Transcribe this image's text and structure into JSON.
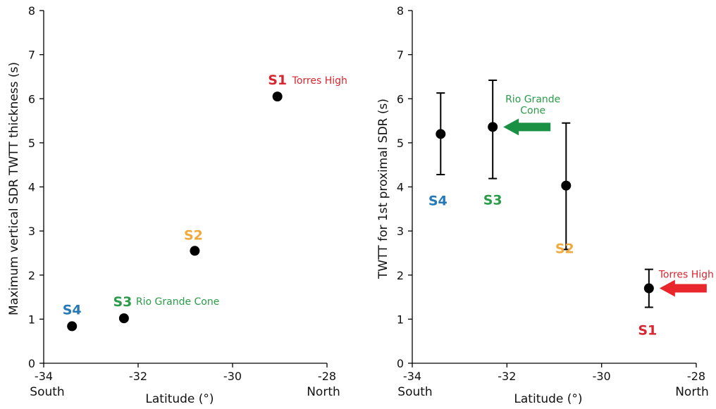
{
  "colors": {
    "S1": "#d7262f",
    "S2": "#f2a93b",
    "S3": "#2a9b48",
    "S4": "#2679b5",
    "arrow_green": "#199043",
    "arrow_red": "#e8262b",
    "point": "#000000"
  },
  "chart_data": [
    {
      "type": "scatter",
      "xlabel": "Latitude (°)",
      "ylabel": "Maximum vertical SDR TWTT thickness (s)",
      "xlim": [
        -34,
        -28
      ],
      "ylim": [
        0,
        8
      ],
      "xticks": [
        "-34",
        "-32",
        "-30",
        "-28"
      ],
      "yticks": [
        "0",
        "1",
        "2",
        "3",
        "4",
        "5",
        "6",
        "7",
        "8"
      ],
      "x_left_label": "South",
      "x_right_label": "North",
      "points": [
        {
          "id": "S4",
          "x": -33.4,
          "y": 0.84,
          "label": "S4",
          "note": ""
        },
        {
          "id": "S3",
          "x": -32.3,
          "y": 1.02,
          "label": "S3",
          "note": "Rio Grande Cone"
        },
        {
          "id": "S2",
          "x": -30.8,
          "y": 2.55,
          "label": "S2",
          "note": ""
        },
        {
          "id": "S1",
          "x": -29.05,
          "y": 6.05,
          "label": "S1",
          "note": "Torres High"
        }
      ]
    },
    {
      "type": "scatter",
      "xlabel": "Latitude (°)",
      "ylabel": "TWTT for 1st proximal SDR (s)",
      "xlim": [
        -34,
        -28
      ],
      "ylim": [
        0,
        8
      ],
      "xticks": [
        "-34",
        "-32",
        "-30",
        "-28"
      ],
      "yticks": [
        "0",
        "1",
        "2",
        "3",
        "4",
        "5",
        "6",
        "7",
        "8"
      ],
      "x_left_label": "South",
      "x_right_label": "North",
      "points": [
        {
          "id": "S4",
          "x": -33.4,
          "y": 5.2,
          "low": 4.28,
          "high": 6.13,
          "label": "S4",
          "note": ""
        },
        {
          "id": "S3",
          "x": -32.3,
          "y": 5.36,
          "low": 4.19,
          "high": 6.42,
          "label": "S3",
          "note": "Rio Grande Cone"
        },
        {
          "id": "S2",
          "x": -30.75,
          "y": 4.03,
          "low": 2.58,
          "high": 5.45,
          "label": "S2",
          "note": ""
        },
        {
          "id": "S1",
          "x": -29.0,
          "y": 1.7,
          "low": 1.27,
          "high": 2.13,
          "label": "S1",
          "note": "Torres High"
        }
      ]
    }
  ]
}
